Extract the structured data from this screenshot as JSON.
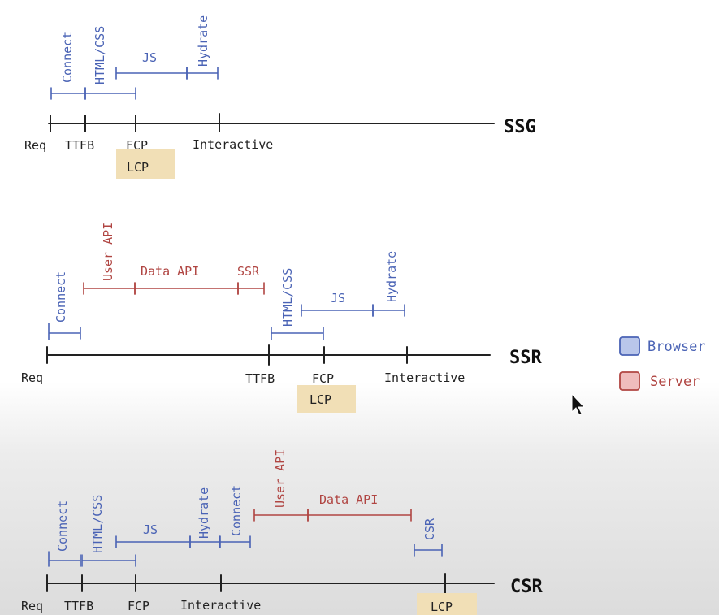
{
  "ssg": {
    "row_label": "SSG",
    "ticks": [
      "Req",
      "TTFB",
      "FCP",
      "Interactive"
    ],
    "lcp": "LCP",
    "segments": {
      "connect": "Connect",
      "html_css": "HTML/CSS",
      "js": "JS",
      "hydrate": "Hydrate"
    }
  },
  "ssr": {
    "row_label": "SSR",
    "ticks": [
      "Req",
      "TTFB",
      "FCP",
      "Interactive"
    ],
    "lcp": "LCP",
    "segments": {
      "connect": "Connect",
      "user_api": "User API",
      "data_api": "Data API",
      "ssr": "SSR",
      "html_css": "HTML/CSS",
      "js": "JS",
      "hydrate": "Hydrate"
    }
  },
  "csr": {
    "row_label": "CSR",
    "ticks": [
      "Req",
      "TTFB",
      "FCP",
      "Interactive"
    ],
    "lcp": "LCP",
    "segments": {
      "connect": "Connect",
      "html_css": "HTML/CSS",
      "js": "JS",
      "hydrate": "Hydrate",
      "connect2": "Connect",
      "user_api": "User API",
      "data_api": "Data API",
      "csr": "CSR"
    }
  },
  "legend": {
    "browser": "Browser",
    "server": "Server"
  },
  "colors": {
    "browser": "#4a63b5",
    "server": "#b04542",
    "lcp_highlight": "#f1dfb6"
  },
  "icons": {
    "cursor": "mouse-pointer-icon"
  }
}
